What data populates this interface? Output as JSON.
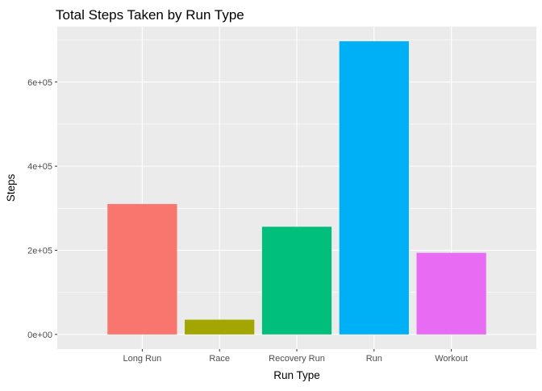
{
  "chart_data": {
    "type": "bar",
    "title": "Total Steps Taken by Run Type",
    "xlabel": "Run Type",
    "ylabel": "Steps",
    "categories": [
      "Long Run",
      "Race",
      "Recovery Run",
      "Run",
      "Workout"
    ],
    "values": [
      310000,
      35000,
      256000,
      697000,
      194000
    ],
    "colors": [
      "#F8766D",
      "#A3A500",
      "#00BF7D",
      "#00B0F6",
      "#E76BF3"
    ],
    "ylim": [
      -34850,
      731850
    ],
    "yticks": [
      0,
      200000,
      400000,
      600000
    ],
    "ytick_labels": [
      "0e+00",
      "2e+05",
      "4e+05",
      "6e+05"
    ],
    "grid": true,
    "legend": "none",
    "panel_background": "#EBEBEB",
    "grid_color": "#FFFFFF"
  }
}
